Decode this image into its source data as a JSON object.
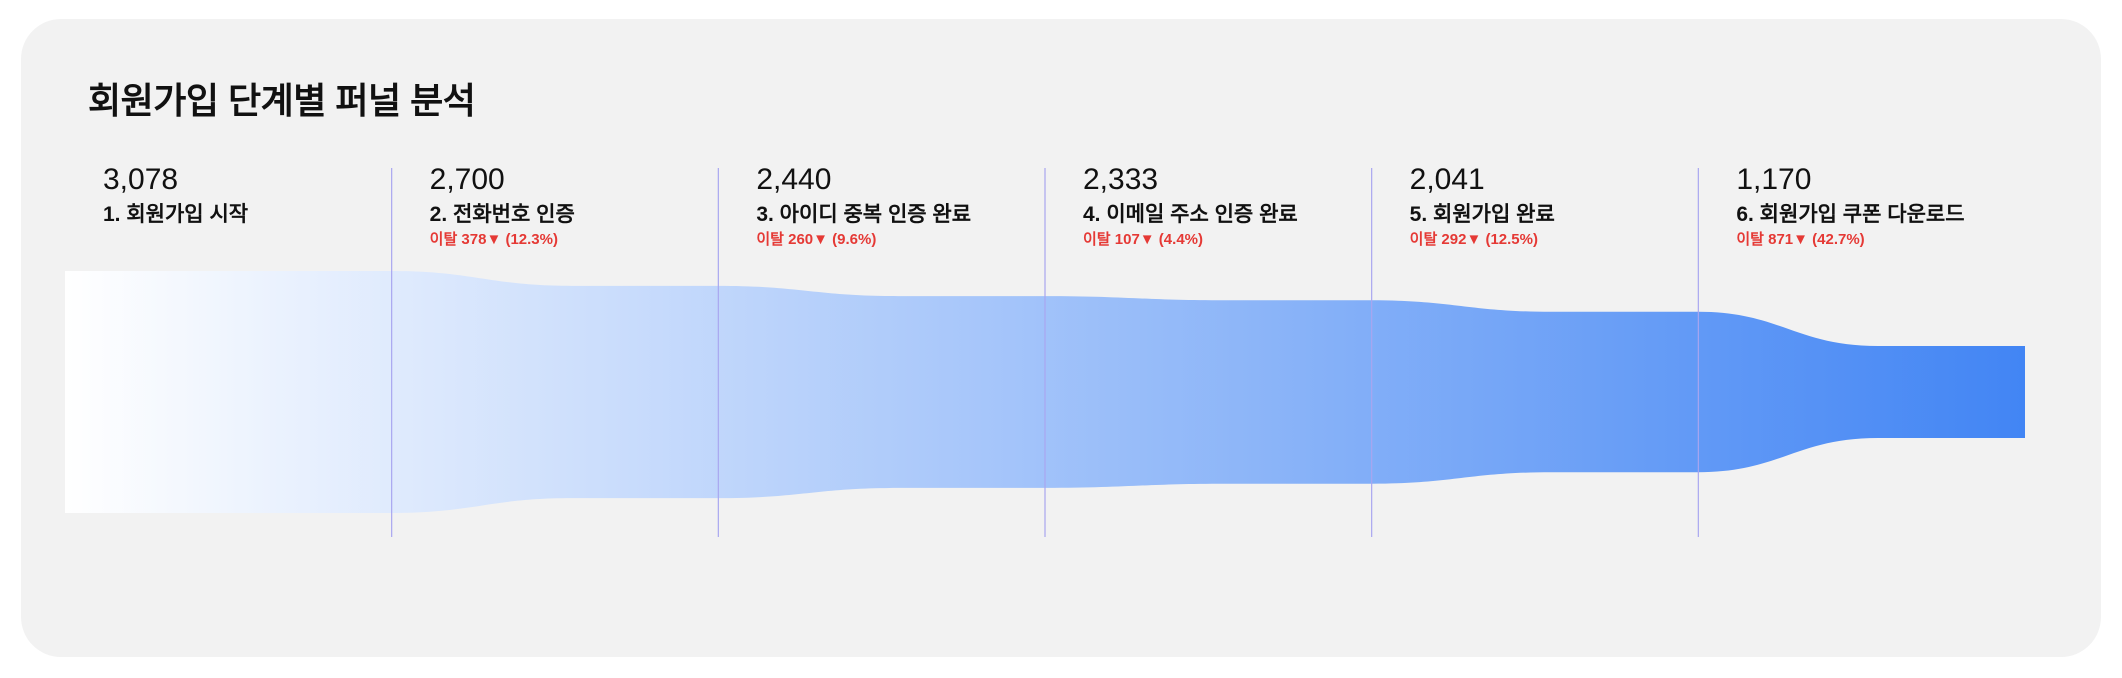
{
  "chart_data": {
    "type": "funnel",
    "title": "회원가입 단계별 퍼널 분석",
    "stages": [
      {
        "num": "1.",
        "name": "회원가입 시작",
        "value": 3078,
        "value_text": "3,078",
        "drop_text": ""
      },
      {
        "num": "2.",
        "name": "전화번호 인증",
        "value": 2700,
        "value_text": "2,700",
        "drop_text": "이탈 378▼ (12.3%)"
      },
      {
        "num": "3.",
        "name": "아이디 중복 인증 완료",
        "value": 2440,
        "value_text": "2,440",
        "drop_text": "이탈 260▼ (9.6%)"
      },
      {
        "num": "4.",
        "name": "이메일 주소 인증 완료",
        "value": 2333,
        "value_text": "2,333",
        "drop_text": "이탈 107▼ (4.4%)"
      },
      {
        "num": "5.",
        "name": "회원가입 완료",
        "value": 2041,
        "value_text": "2,041",
        "drop_text": "이탈 292▼ (12.5%)"
      },
      {
        "num": "6.",
        "name": "회원가입 쿠폰 다운로드",
        "value": 1170,
        "value_text": "1,170",
        "drop_text": "이탈 871▼ (42.7%)"
      }
    ],
    "colors": {
      "gradient_start": "#ffffff",
      "gradient_end": "#4285f4",
      "divider": "#a9a6f0",
      "drop": "#e53935"
    }
  }
}
